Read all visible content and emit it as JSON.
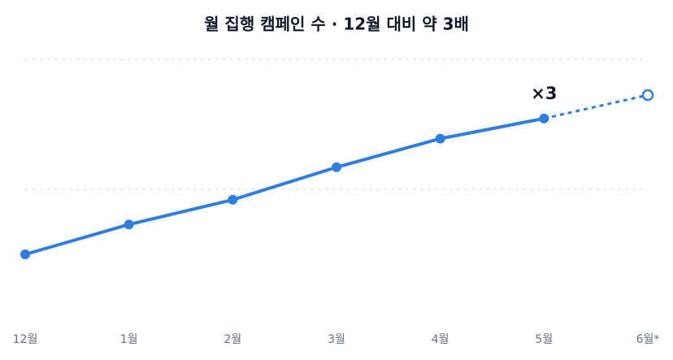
{
  "chart_data": {
    "type": "line",
    "title": "월 집행 캠페인 수 · 12월 대비 약 3배",
    "categories": [
      "12월",
      "1월",
      "2월",
      "3월",
      "4월",
      "5월",
      "6월*"
    ],
    "values": [
      1.0,
      1.46,
      1.84,
      2.34,
      2.78,
      3.09,
      3.45
    ],
    "color": "#2f7de1",
    "forecast_start": 5,
    "ylim": [
      0,
      4
    ],
    "gridlines": [
      2,
      4
    ],
    "annotation": {
      "text": "×3",
      "at": 5
    }
  }
}
